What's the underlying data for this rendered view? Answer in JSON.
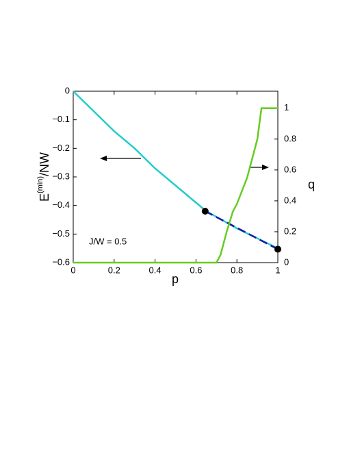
{
  "chart_data": {
    "type": "line",
    "xlabel": "p",
    "ylabel": "E",
    "ylabel_sup": "(min)",
    "ylabel_rest": "/NW",
    "y2label": "q",
    "annotation": "J/W = 0.5",
    "xlim": [
      0,
      1
    ],
    "xticks": [
      0,
      0.2,
      0.4,
      0.6,
      0.8,
      1
    ],
    "ylim": [
      -0.6,
      0
    ],
    "yticks": [
      {
        "value": -0.6,
        "label": "−0.6"
      },
      {
        "value": -0.5,
        "label": "−0.5"
      },
      {
        "value": -0.4,
        "label": "−0.4"
      },
      {
        "value": -0.3,
        "label": "−0.3"
      },
      {
        "value": -0.2,
        "label": "−0.2"
      },
      {
        "value": -0.1,
        "label": "−0.1"
      },
      0
    ],
    "y2lim": [
      0,
      1.11
    ],
    "y2ticks": [
      0,
      0.2,
      0.4,
      0.6,
      0.8,
      1
    ],
    "series": [
      {
        "color": "#22cccc",
        "x": [
          0,
          0.1,
          0.2,
          0.3,
          0.4,
          0.5,
          0.6,
          0.65,
          0.7,
          0.8,
          0.9,
          1
        ],
        "values": [
          0,
          -0.07,
          -0.14,
          -0.2,
          -0.27,
          -0.33,
          -0.39,
          -0.42,
          -0.44,
          -0.48,
          -0.515,
          -0.55
        ]
      },
      {
        "color": "#1a1aa0",
        "style": "dashed",
        "x": [
          0.645,
          1
        ],
        "values": [
          -0.42,
          -0.553
        ]
      },
      {
        "color": "#000000",
        "style": "points",
        "x": [
          0.645,
          1
        ],
        "values": [
          -0.42,
          -0.553
        ]
      },
      {
        "color": "#66cc22",
        "axis": "y2",
        "x": [
          0,
          0.7,
          0.72,
          0.75,
          0.78,
          0.8,
          0.85,
          0.9,
          0.92,
          1
        ],
        "values": [
          0,
          0,
          0.05,
          0.2,
          0.33,
          0.38,
          0.55,
          0.8,
          1,
          1
        ]
      }
    ]
  }
}
